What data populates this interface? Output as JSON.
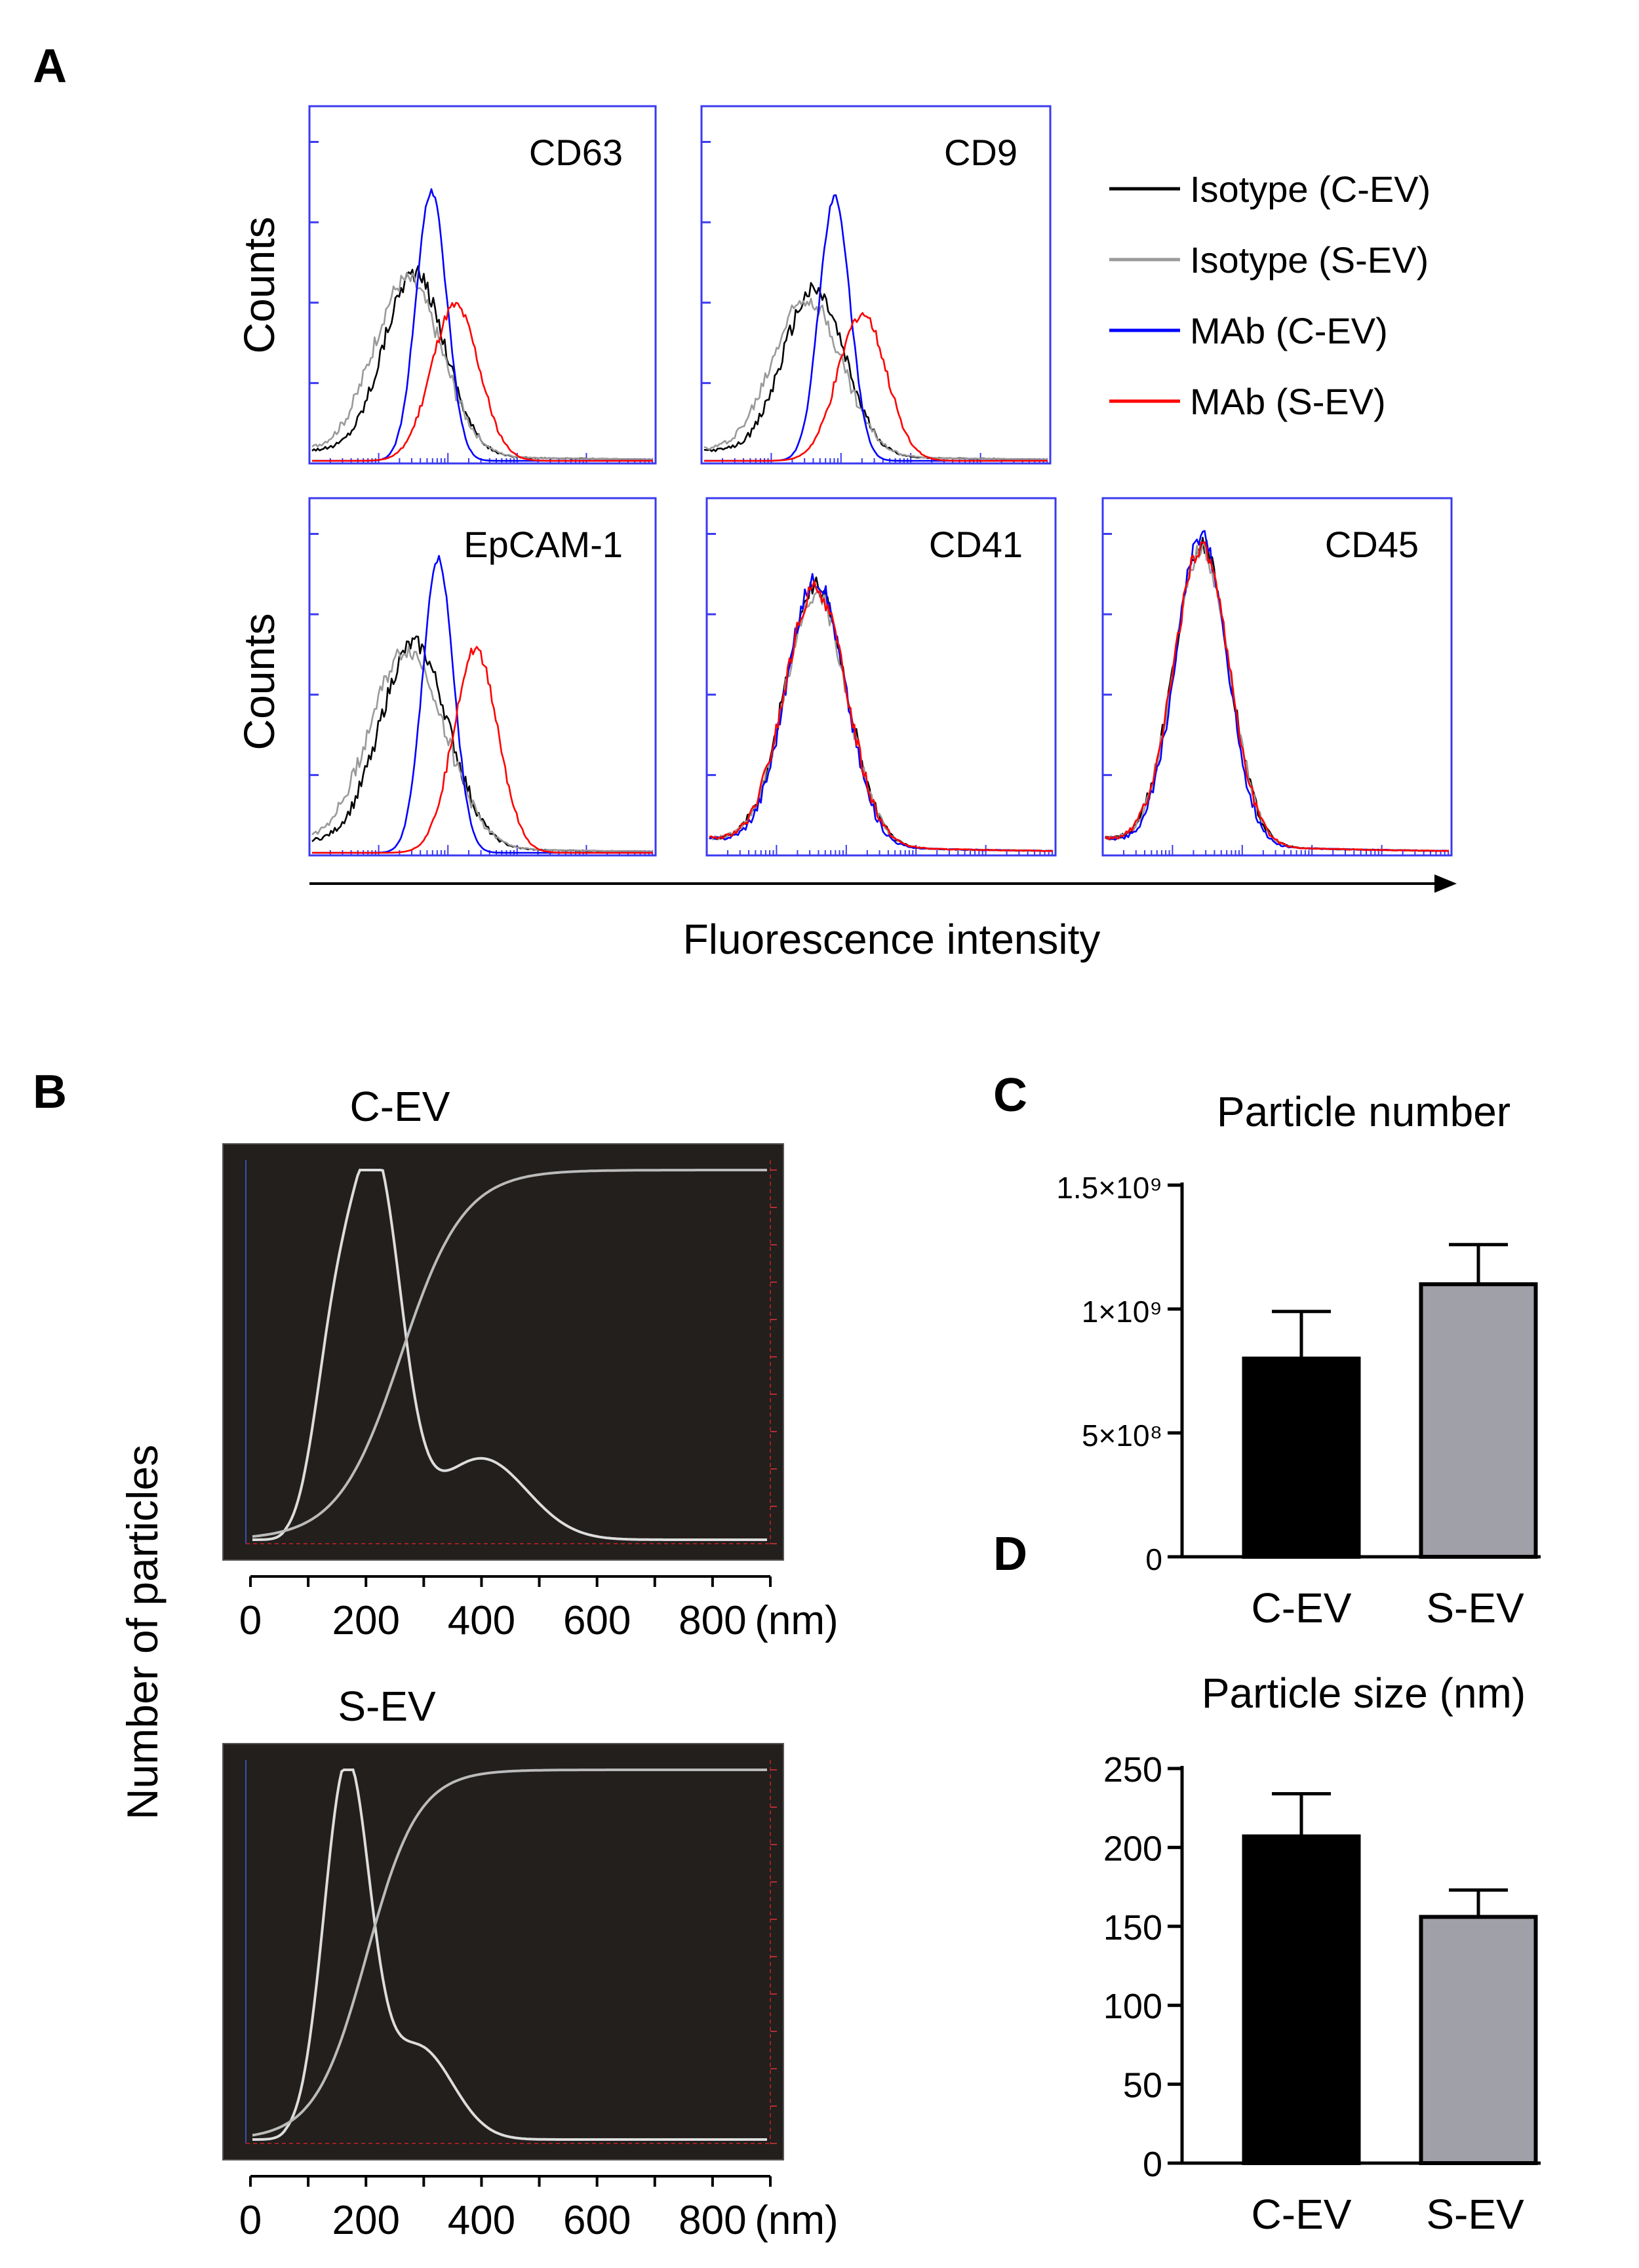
{
  "panels": {
    "A": "A",
    "B": "B",
    "C": "C",
    "D": "D"
  },
  "chart_data": [
    {
      "id": "flow-cytometry",
      "type": "line",
      "ylabel": "Counts",
      "xlabel": "Fluorescence intensity",
      "legend": {
        "placement": "top-right",
        "entries": [
          {
            "name": "Isotype  (C-EV)",
            "color": "#000000"
          },
          {
            "name": "Isotype  (S-EV)",
            "color": "#9a9a9a"
          },
          {
            "name": "MAb (C-EV)",
            "color": "#0000ff"
          },
          {
            "name": "MAb (S-EV)",
            "color": "#ff0000"
          }
        ]
      },
      "subplots": [
        {
          "label": "CD63",
          "series": [
            {
              "color": "#000000",
              "peaks": [
                [
                  0.3,
                  0.52,
                  0.09
                ]
              ],
              "baseline": 0.03,
              "noise": 0.05
            },
            {
              "color": "#9a9a9a",
              "peaks": [
                [
                  0.28,
                  0.5,
                  0.1
                ]
              ],
              "baseline": 0.03,
              "noise": 0.05
            },
            {
              "color": "#0000ff",
              "peaks": [
                [
                  0.35,
                  0.77,
                  0.045
                ]
              ],
              "baseline": 0.0,
              "noise": 0.02
            },
            {
              "color": "#ff0000",
              "peaks": [
                [
                  0.42,
                  0.44,
                  0.07
                ]
              ],
              "baseline": 0.0,
              "noise": 0.03
            }
          ]
        },
        {
          "label": "CD9",
          "series": [
            {
              "color": "#000000",
              "peaks": [
                [
                  0.32,
                  0.47,
                  0.09
                ]
              ],
              "baseline": 0.03,
              "noise": 0.05
            },
            {
              "color": "#9a9a9a",
              "peaks": [
                [
                  0.3,
                  0.45,
                  0.1
                ]
              ],
              "baseline": 0.03,
              "noise": 0.05
            },
            {
              "color": "#0000ff",
              "peaks": [
                [
                  0.38,
                  0.75,
                  0.045
                ]
              ],
              "baseline": 0.0,
              "noise": 0.02
            },
            {
              "color": "#ff0000",
              "peaks": [
                [
                  0.46,
                  0.42,
                  0.07
                ]
              ],
              "baseline": 0.0,
              "noise": 0.03
            }
          ]
        },
        {
          "label": "EpCAM-1",
          "series": [
            {
              "color": "#000000",
              "peaks": [
                [
                  0.3,
                  0.58,
                  0.1
                ]
              ],
              "baseline": 0.03,
              "noise": 0.05
            },
            {
              "color": "#9a9a9a",
              "peaks": [
                [
                  0.28,
                  0.56,
                  0.11
                ]
              ],
              "baseline": 0.03,
              "noise": 0.05
            },
            {
              "color": "#0000ff",
              "peaks": [
                [
                  0.37,
                  0.84,
                  0.045
                ]
              ],
              "baseline": 0.0,
              "noise": 0.02
            },
            {
              "color": "#ff0000",
              "peaks": [
                [
                  0.48,
                  0.58,
                  0.065
                ]
              ],
              "baseline": 0.0,
              "noise": 0.03
            }
          ]
        },
        {
          "label": "CD41",
          "series": [
            {
              "color": "#000000",
              "peaks": [
                [
                  0.31,
                  0.74,
                  0.09
                ]
              ],
              "baseline": 0.04,
              "noise": 0.05
            },
            {
              "color": "#9a9a9a",
              "peaks": [
                [
                  0.31,
                  0.72,
                  0.09
                ]
              ],
              "baseline": 0.04,
              "noise": 0.05
            },
            {
              "color": "#0000ff",
              "peaks": [
                [
                  0.31,
                  0.76,
                  0.085
                ]
              ],
              "baseline": 0.04,
              "noise": 0.05
            },
            {
              "color": "#ff0000",
              "peaks": [
                [
                  0.31,
                  0.73,
                  0.09
                ]
              ],
              "baseline": 0.04,
              "noise": 0.05
            }
          ]
        },
        {
          "label": "CD45",
          "series": [
            {
              "color": "#000000",
              "peaks": [
                [
                  0.28,
                  0.86,
                  0.08
                ]
              ],
              "baseline": 0.04,
              "noise": 0.05
            },
            {
              "color": "#9a9a9a",
              "peaks": [
                [
                  0.28,
                  0.84,
                  0.08
                ]
              ],
              "baseline": 0.04,
              "noise": 0.05
            },
            {
              "color": "#0000ff",
              "peaks": [
                [
                  0.28,
                  0.88,
                  0.075
                ]
              ],
              "baseline": 0.04,
              "noise": 0.05
            },
            {
              "color": "#ff0000",
              "peaks": [
                [
                  0.28,
                  0.85,
                  0.08
                ]
              ],
              "baseline": 0.04,
              "noise": 0.05
            }
          ]
        }
      ]
    },
    {
      "id": "nta",
      "type": "line",
      "ylabel": "Number of particles",
      "xunit": "(nm)",
      "xlim": [
        0,
        900
      ],
      "xticks": [
        0,
        200,
        400,
        600,
        800
      ],
      "subplots": [
        {
          "title": "C-EV",
          "distribution": {
            "color": "#dddddd",
            "peaks": [
              [
                215,
                1.0,
                45
              ],
              [
                140,
                0.42,
                35
              ],
              [
                400,
                0.22,
                80
              ]
            ]
          },
          "cumulative": {
            "color": "#bbbbbb",
            "center": 260,
            "scale": 55
          }
        },
        {
          "title": "S-EV",
          "distribution": {
            "color": "#dddddd",
            "peaks": [
              [
                165,
                1.0,
                40
              ],
              [
                290,
                0.25,
                60
              ]
            ]
          },
          "cumulative": {
            "color": "#bbbbbb",
            "center": 200,
            "scale": 45
          }
        }
      ]
    },
    {
      "id": "particle-number",
      "type": "bar",
      "title": "Particle number",
      "categories": [
        "C-EV",
        "S-EV"
      ],
      "values": [
        800000000,
        1100000000
      ],
      "errors": [
        190000000,
        160000000
      ],
      "colors": [
        "#000000",
        "#a0a0a8"
      ],
      "ylim": [
        0,
        1500000000
      ],
      "yticks": [
        0,
        500000000,
        1000000000,
        1500000000
      ],
      "ytick_labels": [
        "0",
        "5×10⁸",
        "1×10⁹",
        "1.5×10⁹"
      ]
    },
    {
      "id": "particle-size",
      "type": "bar",
      "title": "Particle size (nm)",
      "categories": [
        "C-EV",
        "S-EV"
      ],
      "values": [
        207,
        156
      ],
      "errors": [
        27,
        17
      ],
      "colors": [
        "#000000",
        "#a0a0a8"
      ],
      "ylim": [
        0,
        250
      ],
      "yticks": [
        0,
        50,
        100,
        150,
        200,
        250
      ],
      "ytick_labels": [
        "0",
        "50",
        "100",
        "150",
        "200",
        "250"
      ]
    }
  ]
}
